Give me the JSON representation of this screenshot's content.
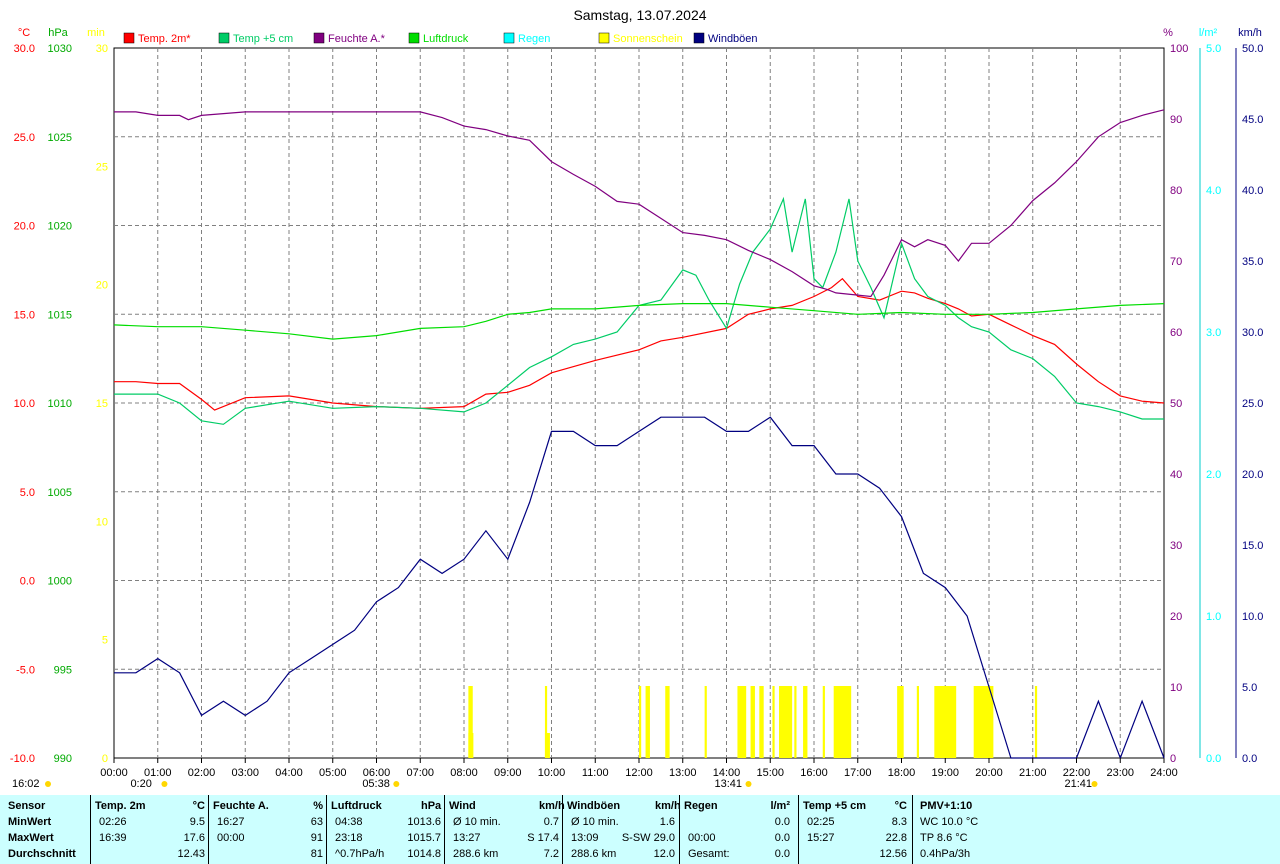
{
  "chart_data": {
    "type": "line",
    "title": "Samstag, 13.07.2024",
    "x_ticks": [
      "00:00",
      "01:00",
      "02:00",
      "03:00",
      "04:00",
      "05:00",
      "06:00",
      "07:00",
      "08:00",
      "09:00",
      "10:00",
      "11:00",
      "12:00",
      "13:00",
      "14:00",
      "15:00",
      "16:00",
      "17:00",
      "18:00",
      "19:00",
      "20:00",
      "21:00",
      "22:00",
      "23:00",
      "24:00"
    ],
    "x_range_hours": [
      0,
      24
    ],
    "grid": true,
    "axes": {
      "temp": {
        "unit": "°C",
        "ticks": [
          "30.0",
          "25.0",
          "20.0",
          "15.0",
          "10.0",
          "5.0",
          "0.0",
          "-5.0",
          "-10.0"
        ],
        "range": [
          -10,
          30
        ],
        "color": "#ff0000"
      },
      "pressure": {
        "unit": "hPa",
        "ticks": [
          "1030",
          "1025",
          "1020",
          "1015",
          "1010",
          "1005",
          "1000",
          "995",
          "990"
        ],
        "range": [
          990,
          1030
        ],
        "color": "#00aa00"
      },
      "sunshine": {
        "unit": "min",
        "ticks": [
          "30",
          "25",
          "20",
          "15",
          "10",
          "5",
          "0"
        ],
        "range": [
          0,
          30
        ],
        "color": "#ffff00"
      },
      "humidity": {
        "unit": "%",
        "ticks": [
          "100",
          "90",
          "80",
          "70",
          "60",
          "50",
          "40",
          "30",
          "20",
          "10",
          "0"
        ],
        "range": [
          0,
          100
        ],
        "color": "#800080"
      },
      "rain": {
        "unit": "l/m²",
        "ticks": [
          "5.0",
          "4.0",
          "3.0",
          "2.0",
          "1.0",
          "0.0"
        ],
        "range": [
          0,
          5
        ],
        "color": "#00ffff"
      },
      "wind": {
        "unit": "km/h",
        "ticks": [
          "50.0",
          "45.0",
          "40.0",
          "35.0",
          "30.0",
          "25.0",
          "20.0",
          "15.0",
          "10.0",
          "5.0",
          "0.0"
        ],
        "range": [
          0,
          50
        ],
        "color": "#000080"
      }
    },
    "legend": [
      {
        "label": "Temp. 2m*",
        "color": "#ff0000"
      },
      {
        "label": "Temp +5 cm",
        "color": "#00cc66"
      },
      {
        "label": "Feuchte A.*",
        "color": "#800080"
      },
      {
        "label": "Luftdruck",
        "color": "#00dd00"
      },
      {
        "label": "Regen",
        "color": "#00ffff"
      },
      {
        "label": "Sonnenschein",
        "color": "#ffff00"
      },
      {
        "label": "Windböen",
        "color": "#000080"
      }
    ],
    "series": [
      {
        "name": "Temp. 2m*",
        "axis": "temp",
        "color": "#ff0000",
        "x": [
          0,
          0.5,
          1,
          1.5,
          2,
          2.3,
          3,
          4,
          5,
          6,
          7,
          8,
          8.5,
          9,
          9.5,
          10,
          11,
          12,
          12.5,
          13,
          14,
          14.5,
          15,
          15.5,
          16,
          16.4,
          16.65,
          17,
          17.5,
          18,
          18.3,
          18.6,
          19,
          19.3,
          19.6,
          20,
          20.5,
          21,
          21.5,
          22,
          22.5,
          23,
          23.5,
          24
        ],
        "y": [
          11.2,
          11.2,
          11.1,
          11.1,
          10.2,
          9.6,
          10.3,
          10.4,
          10.0,
          9.8,
          9.7,
          9.8,
          10.5,
          10.6,
          11.0,
          11.7,
          12.4,
          13.0,
          13.5,
          13.7,
          14.2,
          15.0,
          15.3,
          15.5,
          16.0,
          16.5,
          17.0,
          16.0,
          15.8,
          16.3,
          16.2,
          15.9,
          15.6,
          15.3,
          14.9,
          15.0,
          14.4,
          13.8,
          13.3,
          12.2,
          11.2,
          10.4,
          10.1,
          10.0
        ]
      },
      {
        "name": "Temp +5 cm",
        "axis": "temp",
        "color": "#00cc66",
        "x": [
          0,
          1,
          1.5,
          2,
          2.5,
          3,
          4,
          5,
          6,
          7,
          8,
          8.5,
          9,
          9.5,
          10,
          10.5,
          11,
          11.5,
          12,
          12.5,
          13,
          13.3,
          13.6,
          14,
          14.3,
          14.6,
          15,
          15.3,
          15.5,
          15.8,
          16,
          16.2,
          16.5,
          16.8,
          17,
          17.3,
          17.6,
          18,
          18.3,
          18.6,
          19,
          19.3,
          19.6,
          20,
          20.5,
          21,
          21.5,
          22,
          22.5,
          23,
          23.5,
          24
        ],
        "y": [
          10.5,
          10.5,
          10.0,
          9.0,
          8.8,
          9.7,
          10.1,
          9.7,
          9.8,
          9.7,
          9.5,
          10.0,
          11.0,
          12.0,
          12.6,
          13.3,
          13.6,
          14.0,
          15.5,
          15.8,
          17.5,
          17.2,
          15.8,
          14.2,
          16.7,
          18.5,
          19.8,
          21.5,
          18.5,
          21.5,
          17.0,
          16.5,
          18.5,
          21.5,
          18.0,
          16.5,
          14.8,
          19.0,
          17.0,
          16.0,
          15.5,
          14.8,
          14.3,
          14.0,
          13.0,
          12.5,
          11.5,
          10.0,
          9.8,
          9.5,
          9.1,
          9.1
        ]
      },
      {
        "name": "Feuchte A.*",
        "axis": "humidity",
        "color": "#800080",
        "x": [
          0,
          0.5,
          1,
          1.5,
          1.7,
          2,
          3,
          4,
          5,
          6,
          7,
          7.5,
          8,
          8.5,
          9,
          9.5,
          10,
          10.5,
          11,
          11.5,
          12,
          12.5,
          13,
          13.5,
          14,
          14.5,
          15,
          15.5,
          16,
          16.3,
          16.5,
          17,
          17.3,
          17.6,
          18,
          18.3,
          18.6,
          19,
          19.3,
          19.6,
          20,
          20.5,
          21,
          21.5,
          22,
          22.5,
          23,
          23.5,
          24
        ],
        "y": [
          91,
          91,
          90.5,
          90.5,
          89.9,
          90.5,
          91,
          91,
          91,
          91,
          91,
          90.2,
          89,
          88.5,
          87.6,
          87.0,
          84.0,
          82.2,
          80.5,
          78.4,
          78.0,
          76.0,
          74.0,
          73.6,
          73.0,
          71.5,
          70.2,
          68.5,
          66.5,
          66.0,
          65.5,
          65.2,
          65.0,
          68.0,
          73.0,
          72.0,
          73.0,
          72.2,
          70.0,
          72.5,
          72.5,
          75.0,
          78.5,
          81.0,
          84.0,
          87.5,
          89.5,
          90.5,
          91.3
        ]
      },
      {
        "name": "Luftdruck",
        "axis": "pressure",
        "color": "#00dd00",
        "x": [
          0,
          1,
          2,
          3,
          4,
          5,
          6,
          7,
          8,
          8.5,
          9,
          9.5,
          10,
          11,
          12,
          13,
          14,
          15,
          16,
          17,
          18,
          19,
          20,
          21,
          22,
          23,
          24
        ],
        "y": [
          1014.4,
          1014.3,
          1014.3,
          1014.1,
          1013.9,
          1013.6,
          1013.8,
          1014.2,
          1014.3,
          1014.6,
          1015.0,
          1015.1,
          1015.3,
          1015.3,
          1015.5,
          1015.6,
          1015.6,
          1015.4,
          1015.2,
          1015.0,
          1015.1,
          1015.0,
          1015.0,
          1015.1,
          1015.3,
          1015.5,
          1015.6
        ]
      },
      {
        "name": "Windböen",
        "axis": "wind",
        "color": "#000080",
        "x": [
          0,
          0.5,
          1,
          1.5,
          2,
          2.5,
          3,
          3.5,
          4,
          4.5,
          5,
          5.5,
          6,
          6.5,
          7,
          7.5,
          8,
          8.5,
          9,
          9.5,
          10,
          10.5,
          11,
          11.5,
          12,
          12.5,
          13,
          13.5,
          14,
          14.5,
          15,
          15.5,
          16,
          16.5,
          17,
          17.5,
          18,
          18.5,
          19,
          19.5,
          20,
          20.5,
          21,
          21.5,
          22,
          22.5,
          23,
          23.5,
          24
        ],
        "y": [
          6,
          6,
          7,
          6,
          3,
          4,
          3,
          4,
          6,
          7,
          8,
          9,
          11,
          12,
          14,
          13,
          14,
          16,
          14,
          18,
          23,
          23,
          22,
          22,
          23,
          24,
          24,
          24,
          23,
          23,
          24,
          22,
          22,
          20,
          20,
          19,
          17,
          13,
          12,
          10,
          5,
          0,
          0,
          0,
          0,
          4,
          0,
          4,
          0
        ]
      }
    ],
    "sunshine_bars_hours": [
      [
        8.1,
        8.2
      ],
      [
        9.85,
        9.9
      ],
      [
        12.0,
        12.05
      ],
      [
        12.15,
        12.25
      ],
      [
        12.6,
        12.7
      ],
      [
        13.5,
        13.55
      ],
      [
        14.25,
        14.45
      ],
      [
        14.55,
        14.65
      ],
      [
        14.75,
        14.85
      ],
      [
        15.05,
        15.1
      ],
      [
        15.2,
        15.5
      ],
      [
        15.55,
        15.6
      ],
      [
        15.75,
        15.85
      ],
      [
        16.2,
        16.25
      ],
      [
        16.45,
        16.85
      ],
      [
        17.9,
        18.05
      ],
      [
        18.35,
        18.4
      ],
      [
        18.75,
        19.25
      ],
      [
        19.65,
        20.1
      ],
      [
        21.05,
        21.1
      ]
    ],
    "markers": [
      {
        "label": "0:20",
        "hour": 0.33
      },
      {
        "label": "05:38",
        "hour": 5.63
      },
      {
        "label": "13:41",
        "hour": 13.68
      },
      {
        "label": "16:02",
        "hour": -0.1
      },
      {
        "label": "21:41",
        "hour": 21.68
      }
    ]
  },
  "stats": {
    "headers": {
      "sensor": "Sensor",
      "temp": "Temp. 2m",
      "temp_unit": "°C",
      "hum": "Feuchte A.",
      "hum_unit": "%",
      "press": "Luftdruck",
      "press_unit": "hPa",
      "wind": "Wind",
      "wind_unit": "km/h",
      "gust": "Windböen",
      "gust_unit": "km/h",
      "rain": "Regen",
      "rain_unit": "l/m²",
      "t5": "Temp +5 cm",
      "t5_unit": "°C",
      "pmv": "PMV+1:10"
    },
    "row_labels": [
      "MinWert",
      "MaxWert",
      "Durchschnitt"
    ],
    "temp": [
      [
        "02:26",
        "9.5"
      ],
      [
        "16:39",
        "17.6"
      ],
      [
        "",
        "12.43"
      ]
    ],
    "hum": [
      [
        "16:27",
        "63"
      ],
      [
        "00:00",
        "91"
      ],
      [
        "",
        "81"
      ]
    ],
    "press": [
      [
        "04:38",
        "1013.6"
      ],
      [
        "23:18",
        "1015.7"
      ],
      [
        "^0.7hPa/h",
        "1014.8"
      ]
    ],
    "wind": [
      [
        "Ø 10 min.",
        "0.7"
      ],
      [
        "13:27",
        "S 17.4"
      ],
      [
        "288.6 km",
        "7.2"
      ]
    ],
    "gust": [
      [
        "Ø 10 min.",
        "1.6"
      ],
      [
        "13:09",
        "S-SW 29.0"
      ],
      [
        "288.6 km",
        "12.0"
      ]
    ],
    "rain": [
      [
        "",
        "0.0"
      ],
      [
        "00:00",
        "0.0"
      ],
      [
        "Gesamt:",
        "0.0"
      ]
    ],
    "t5": [
      [
        "02:25",
        "8.3"
      ],
      [
        "15:27",
        "22.8"
      ],
      [
        "",
        "12.56"
      ]
    ],
    "pmv": [
      "WC 10.0 °C",
      "TP 8.6 °C",
      "0.4hPa/3h"
    ]
  }
}
